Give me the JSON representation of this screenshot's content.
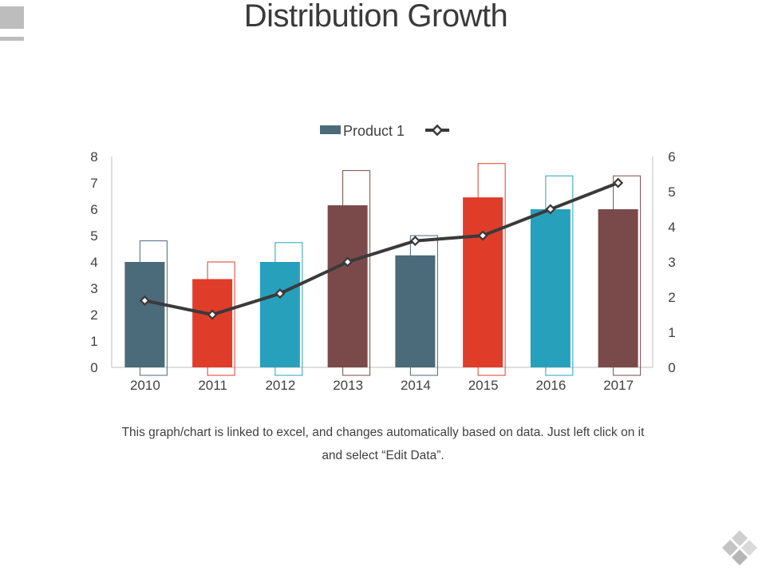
{
  "page": {
    "title": "Distribution Growth"
  },
  "caption": "This graph/chart is linked to excel, and changes automatically based on data. Just left click on it and select “Edit Data”.",
  "colors": {
    "slate": "#4b6a7a",
    "red": "#e03c2a",
    "teal": "#27a0bc",
    "maroon": "#7a4a4a",
    "line": "#3a3a3a",
    "axis": "#bfbfbf",
    "text": "#404040"
  },
  "icons": {
    "corner": "corner-block-icon",
    "logo": "diamond-logo-icon"
  },
  "chart_data": {
    "type": "bar",
    "legend": {
      "position": "top",
      "entries": [
        "Product 1",
        ""
      ]
    },
    "categories": [
      "2010",
      "2011",
      "2012",
      "2013",
      "2014",
      "2015",
      "2016",
      "2017"
    ],
    "bar_colors": [
      "slate",
      "red",
      "teal",
      "maroon",
      "slate",
      "red",
      "teal",
      "maroon"
    ],
    "primary_axis": {
      "ylim": [
        0,
        8
      ],
      "ticks": [
        "0",
        "1",
        "2",
        "3",
        "4",
        "5",
        "6",
        "7",
        "8"
      ]
    },
    "secondary_axis": {
      "ylim": [
        0,
        6
      ],
      "ticks": [
        "0",
        "1",
        "2",
        "3",
        "4",
        "5",
        "6"
      ]
    },
    "series": [
      {
        "name": "Product 1",
        "type": "bar",
        "axis": "primary",
        "values": [
          4.0,
          3.35,
          4.0,
          6.15,
          4.25,
          6.45,
          6.0,
          6.0
        ]
      },
      {
        "name": "",
        "type": "bar-outline",
        "axis": "secondary",
        "values": [
          3.6,
          3.0,
          3.55,
          5.6,
          3.75,
          5.8,
          5.45,
          5.45
        ]
      },
      {
        "name": "",
        "type": "line",
        "axis": "secondary",
        "values": [
          1.9,
          1.5,
          2.1,
          3.0,
          3.6,
          3.75,
          4.5,
          5.25
        ]
      }
    ]
  }
}
